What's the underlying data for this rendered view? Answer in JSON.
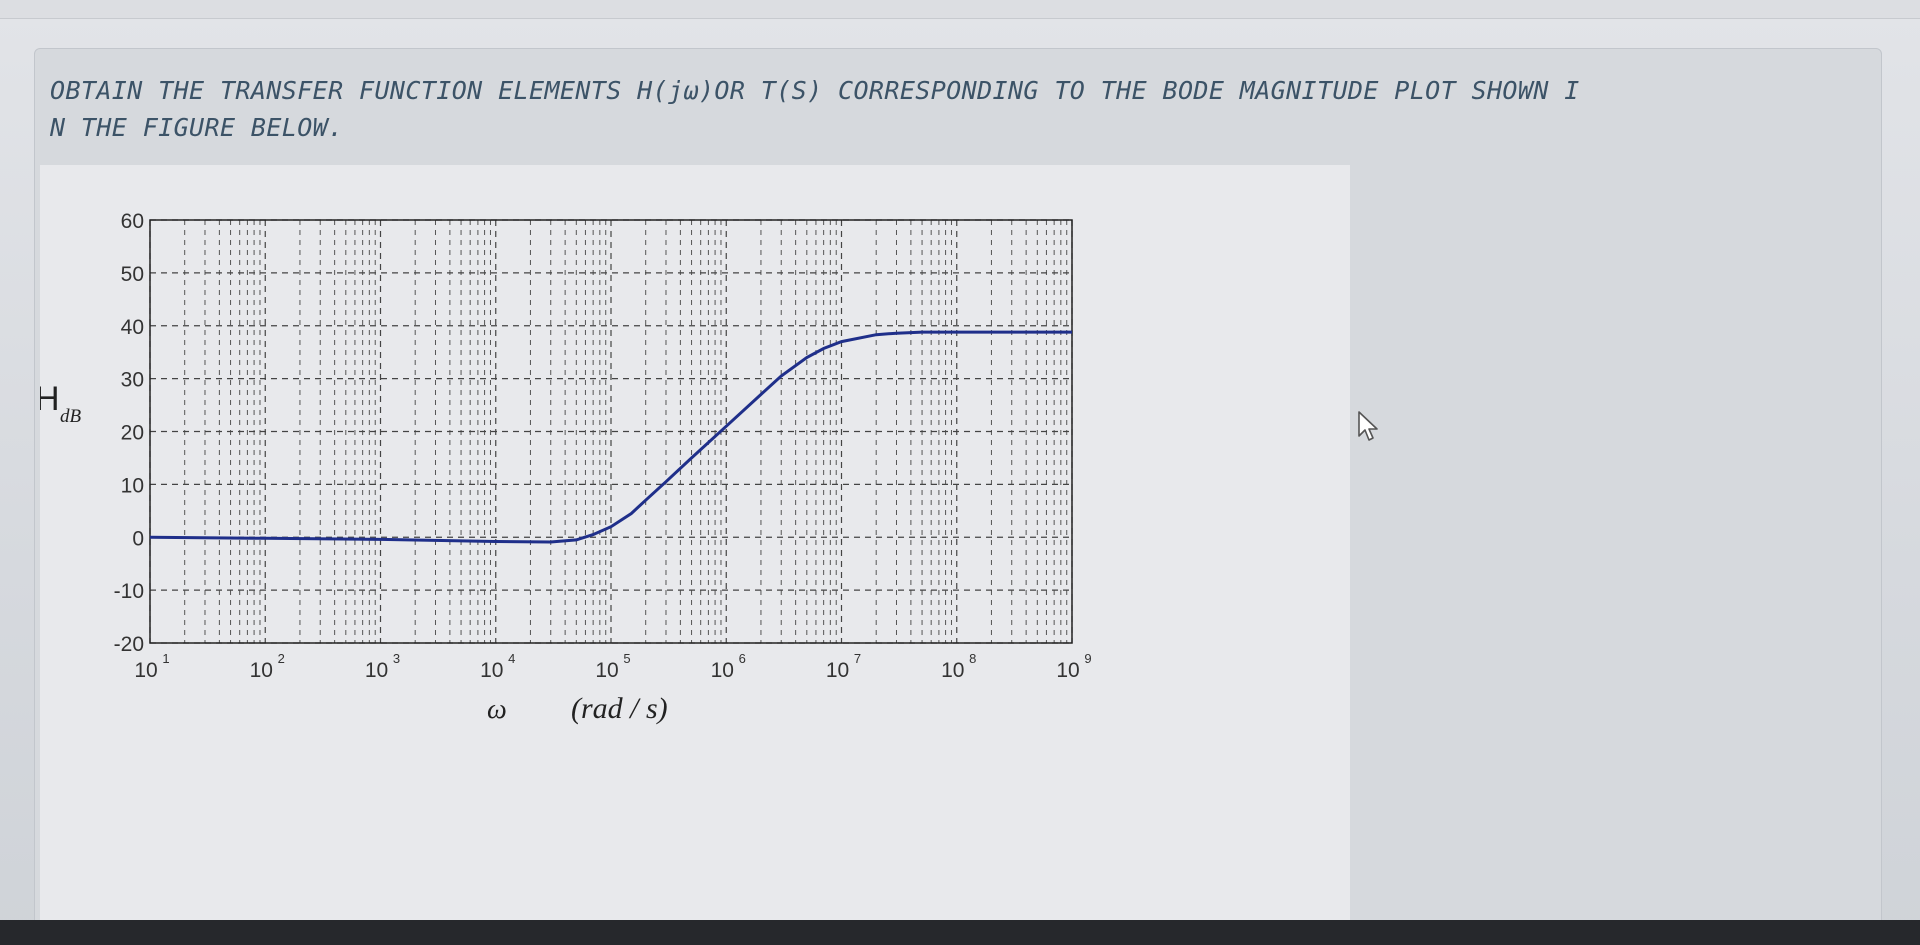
{
  "question": {
    "line1": "OBTAIN THE TRANSFER FUNCTION ELEMENTS H(jω)OR T(S) CORRESPONDING TO THE BODE MAGNITUDE PLOT SHOWN I",
    "line2": "N THE FIGURE BELOW."
  },
  "chart_data": {
    "type": "line",
    "title": "",
    "ylabel_main": "H",
    "ylabel_sub": "dB",
    "xlabel_omega": "ω",
    "xlabel_unit": "(rad / s)",
    "x_scale": "log",
    "xlim": [
      10,
      1000000000
    ],
    "ylim": [
      -20,
      60
    ],
    "x_ticks": [
      {
        "value": 10,
        "base": "10",
        "exp": "1"
      },
      {
        "value": 100,
        "base": "10",
        "exp": "2"
      },
      {
        "value": 1000,
        "base": "10",
        "exp": "3"
      },
      {
        "value": 10000,
        "base": "10",
        "exp": "4"
      },
      {
        "value": 100000,
        "base": "10",
        "exp": "5"
      },
      {
        "value": 1000000,
        "base": "10",
        "exp": "6"
      },
      {
        "value": 10000000,
        "base": "10",
        "exp": "7"
      },
      {
        "value": 100000000,
        "base": "10",
        "exp": "8"
      },
      {
        "value": 1000000000,
        "base": "10",
        "exp": "9"
      }
    ],
    "y_ticks": [
      "60",
      "50",
      "40",
      "30",
      "20",
      "10",
      "0",
      "-10",
      "-20"
    ],
    "y_tick_values": [
      60,
      50,
      40,
      30,
      20,
      10,
      0,
      -10,
      -20
    ],
    "grid": true,
    "line_color": "#1f2f8a",
    "series": [
      {
        "x": [
          10,
          100,
          1000,
          10000,
          30000,
          50000,
          70000,
          100000,
          150000,
          200000,
          300000,
          500000,
          1000000,
          2000000,
          3000000,
          5000000,
          7000000,
          10000000,
          20000000,
          30000000,
          50000000,
          100000000,
          1000000000
        ],
        "y": [
          0,
          -0.2,
          -0.4,
          -0.8,
          -0.9,
          -0.5,
          0.5,
          2.0,
          4.5,
          7.0,
          10.5,
          15.0,
          21.0,
          27.0,
          30.5,
          34.0,
          35.7,
          37.0,
          38.3,
          38.6,
          38.8,
          38.8,
          38.8
        ]
      }
    ]
  }
}
